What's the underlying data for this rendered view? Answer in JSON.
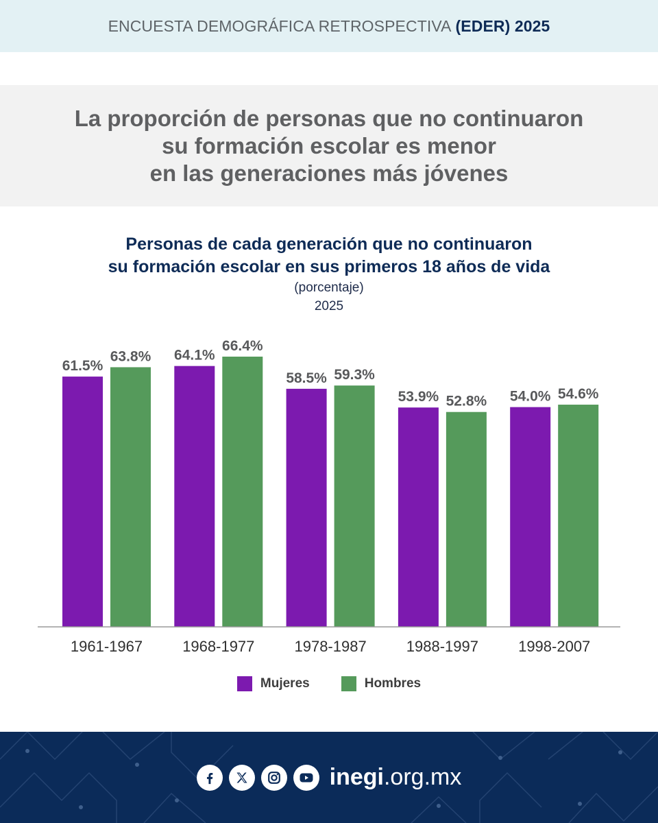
{
  "header": {
    "survey_text": "ENCUESTA DEMOGRÁFICA RETROSPECTIVA",
    "survey_code": "(EDER) 2025"
  },
  "headline": {
    "line1": "La proporción de personas que no continuaron",
    "line2": "su formación escolar es menor",
    "line3": "en las generaciones más jóvenes"
  },
  "chart_data": {
    "type": "bar",
    "title_line1": "Personas de cada generación que no continuaron",
    "title_line2": "su formación escolar en sus primeros 18 años de vida",
    "unit_label": "(porcentaje)",
    "year_label": "2025",
    "categories": [
      "1961-1967",
      "1968-1977",
      "1978-1987",
      "1988-1997",
      "1998-2007"
    ],
    "series": [
      {
        "name": "Mujeres",
        "color": "#7c1aaf",
        "values": [
          61.5,
          64.1,
          58.5,
          53.9,
          54.0
        ],
        "labels": [
          "61.5%",
          "64.1%",
          "58.5%",
          "53.9%",
          "54.0%"
        ]
      },
      {
        "name": "Hombres",
        "color": "#559a5b",
        "values": [
          63.8,
          66.4,
          59.3,
          52.8,
          54.6
        ],
        "labels": [
          "63.8%",
          "66.4%",
          "59.3%",
          "52.8%",
          "54.6%"
        ]
      }
    ],
    "ylim": [
      0,
      66.4
    ],
    "grid": false,
    "legend_position": "bottom"
  },
  "footer": {
    "site_bold": "inegi",
    "site_rest": ".org.mx",
    "icons": [
      "facebook-icon",
      "x-icon",
      "instagram-icon",
      "youtube-icon"
    ],
    "background_color": "#0b2b59"
  }
}
